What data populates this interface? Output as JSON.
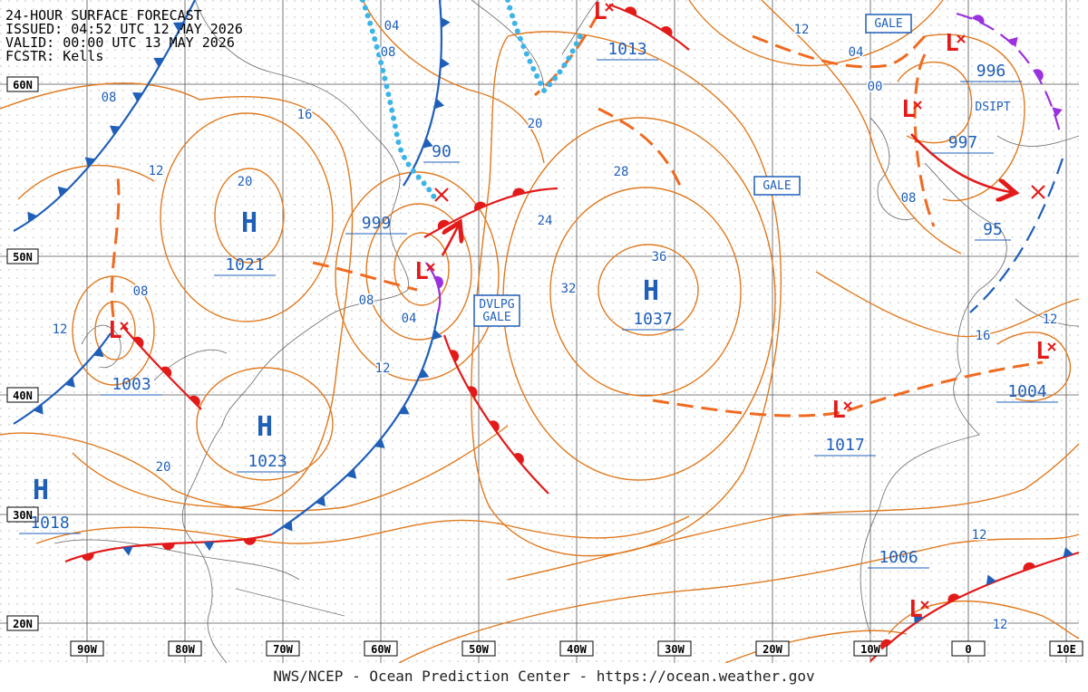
{
  "header": {
    "lines": [
      "24-HOUR SURFACE FORECAST",
      "ISSUED: 04:52 UTC 12 MAY 2026",
      "VALID: 00:00 UTC 13 MAY 2026",
      "FCSTR: Kells"
    ]
  },
  "latitude_labels": [
    "60N",
    "50N",
    "40N",
    "30N",
    "20N"
  ],
  "longitude_labels": [
    "90W",
    "80W",
    "70W",
    "60W",
    "50W",
    "40W",
    "30W",
    "20W",
    "10W",
    "0",
    "10E"
  ],
  "pressure_systems": [
    {
      "symbol": "H",
      "pressure": "1021"
    },
    {
      "symbol": "H",
      "pressure": "1023"
    },
    {
      "symbol": "H",
      "pressure": "1018"
    },
    {
      "symbol": "H",
      "pressure": "1037"
    },
    {
      "symbol": "L",
      "pressure": "1003"
    },
    {
      "symbol": "L",
      "pressure": "999"
    },
    {
      "symbol": "L",
      "pressure": "1013"
    },
    {
      "symbol": "L",
      "pressure": "996"
    },
    {
      "symbol": "L",
      "pressure": "997"
    },
    {
      "symbol": "L",
      "pressure": "1017"
    },
    {
      "symbol": "L",
      "pressure": "1004"
    },
    {
      "symbol": "L",
      "pressure": "1006"
    }
  ],
  "forming_lows": [
    "90",
    "95"
  ],
  "isobar_labels": [
    "04",
    "08",
    "08",
    "16",
    "12",
    "20",
    "20",
    "28",
    "24",
    "36",
    "32",
    "08",
    "12",
    "08",
    "04",
    "12",
    "20",
    "12",
    "04",
    "00",
    "08",
    "16",
    "12",
    "12",
    "12"
  ],
  "warning_boxes": [
    [
      "GALE"
    ],
    [
      "GALE"
    ],
    [
      "DVLPG",
      "GALE"
    ]
  ],
  "notes": [
    "DSIPT"
  ],
  "footer": "NWS/NCEP - Ocean Prediction Center - https://ocean.weather.gov"
}
